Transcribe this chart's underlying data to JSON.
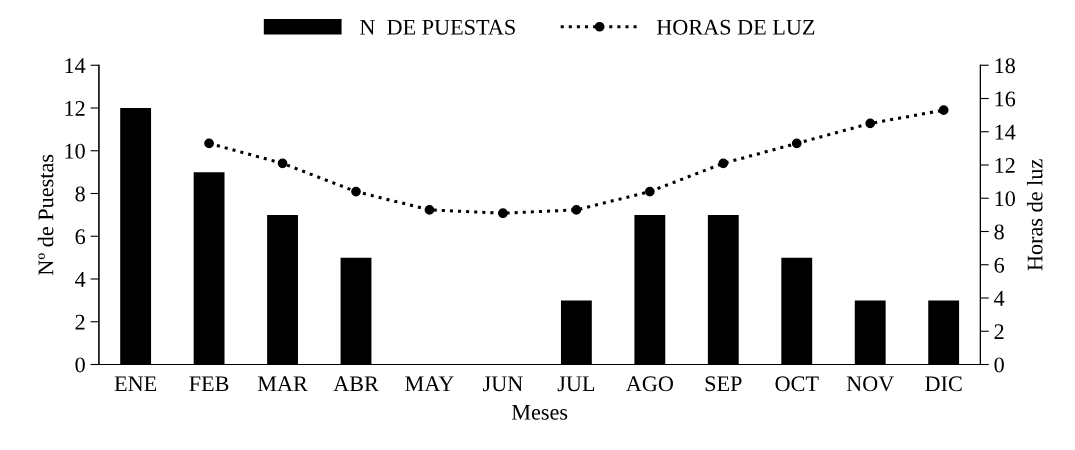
{
  "chart_data": {
    "type": "bar",
    "categories": [
      "ENE",
      "FEB",
      "MAR",
      "ABR",
      "MAY",
      "JUN",
      "JUL",
      "AGO",
      "SEP",
      "OCT",
      "NOV",
      "DIC"
    ],
    "series": [
      {
        "name": "N  DE PUESTAS",
        "color": "#000000",
        "values": [
          12,
          9,
          7,
          5,
          0,
          0,
          3,
          7,
          7,
          5,
          3,
          3
        ]
      },
      {
        "name": "HORAS DE LUZ",
        "type": "line",
        "axis": "y2",
        "color": "#000000",
        "marker": "circle",
        "line_style": "dotted",
        "values": [
          null,
          13.3,
          12.1,
          10.4,
          9.3,
          9.1,
          9.3,
          10.4,
          12.1,
          13.3,
          14.5,
          15.3
        ]
      }
    ],
    "xlabel": "Meses",
    "ylabel": "Nº de Puestas",
    "y2label": "Horas de luz",
    "ylim": [
      0,
      14
    ],
    "yticks": [
      0,
      2,
      4,
      6,
      8,
      10,
      12,
      14
    ],
    "y2lim": [
      0,
      18
    ],
    "y2ticks": [
      0,
      2,
      4,
      6,
      8,
      10,
      12,
      14,
      16,
      18
    ],
    "legend": "top",
    "grid": false
  }
}
